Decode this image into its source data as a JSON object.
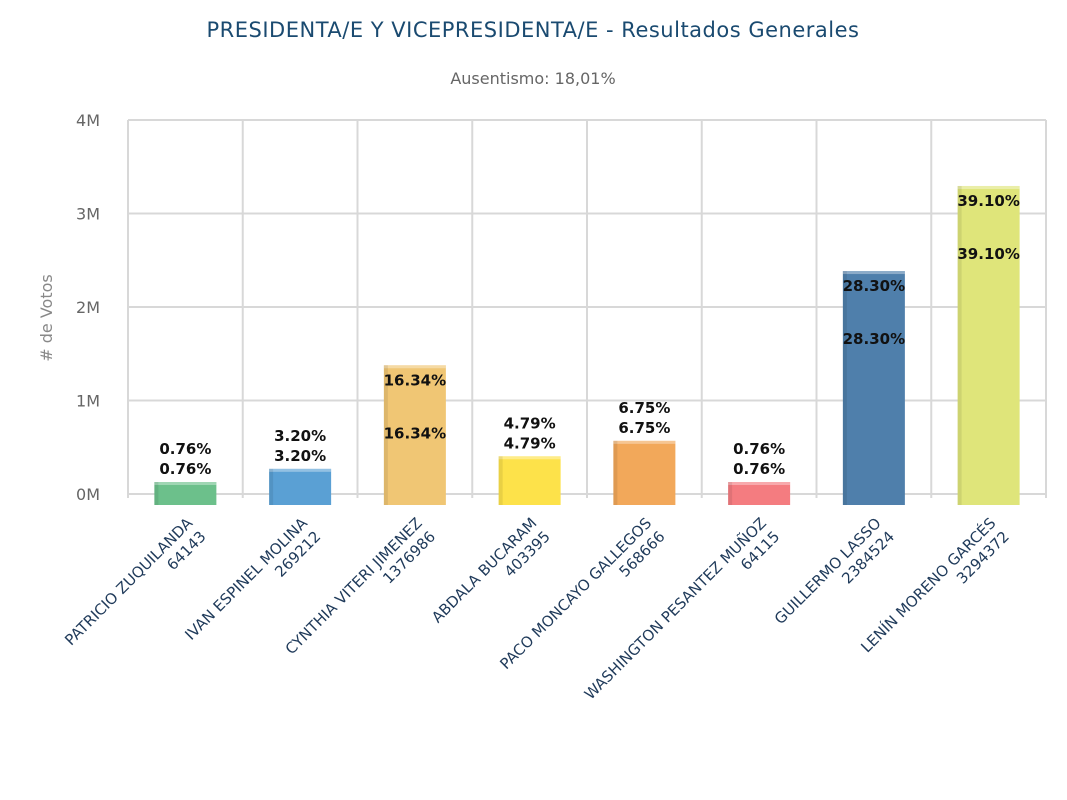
{
  "chart_data": {
    "type": "bar",
    "title": "PRESIDENTA/E Y VICEPRESIDENTA/E - Resultados Generales",
    "subtitle": "Ausentismo: 18,01%",
    "ylabel": "# de Votos",
    "xlabel": "",
    "ylim": [
      0,
      4000000
    ],
    "yticks": [
      "0M",
      "1M",
      "2M",
      "3M",
      "4M"
    ],
    "grid": true,
    "legend": "none",
    "categories": [
      {
        "name": "PATRICIO ZUQUILANDA",
        "votes_label": "64143",
        "value": 64143,
        "percent": "0.76%",
        "color": "#6cc08b"
      },
      {
        "name": "IVAN ESPINEL MOLINA",
        "votes_label": "269212",
        "value": 269212,
        "percent": "3.20%",
        "color": "#5aa0d4"
      },
      {
        "name": "CYNTHIA VITERI JIMENEZ",
        "votes_label": "1376986",
        "value": 1376986,
        "percent": "16.34%",
        "color": "#f0c674"
      },
      {
        "name": "ABDALA BUCARAM",
        "votes_label": "403395",
        "value": 403395,
        "percent": "4.79%",
        "color": "#fde24a"
      },
      {
        "name": "PACO MONCAYO GALLEGOS",
        "votes_label": "568666",
        "value": 568666,
        "percent": "6.75%",
        "color": "#f2a85a"
      },
      {
        "name": "WASHINGTON PESANTEZ MUÑOZ",
        "votes_label": "64115",
        "value": 64115,
        "percent": "0.76%",
        "color": "#f47c80"
      },
      {
        "name": "GUILLERMO LASSO",
        "votes_label": "2384524",
        "value": 2384524,
        "percent": "28.30%",
        "color": "#4f7fab"
      },
      {
        "name": "LENÍN MORENO GARCÉS",
        "votes_label": "3294372",
        "value": 3294372,
        "percent": "39.10%",
        "color": "#dfe57a"
      }
    ]
  }
}
